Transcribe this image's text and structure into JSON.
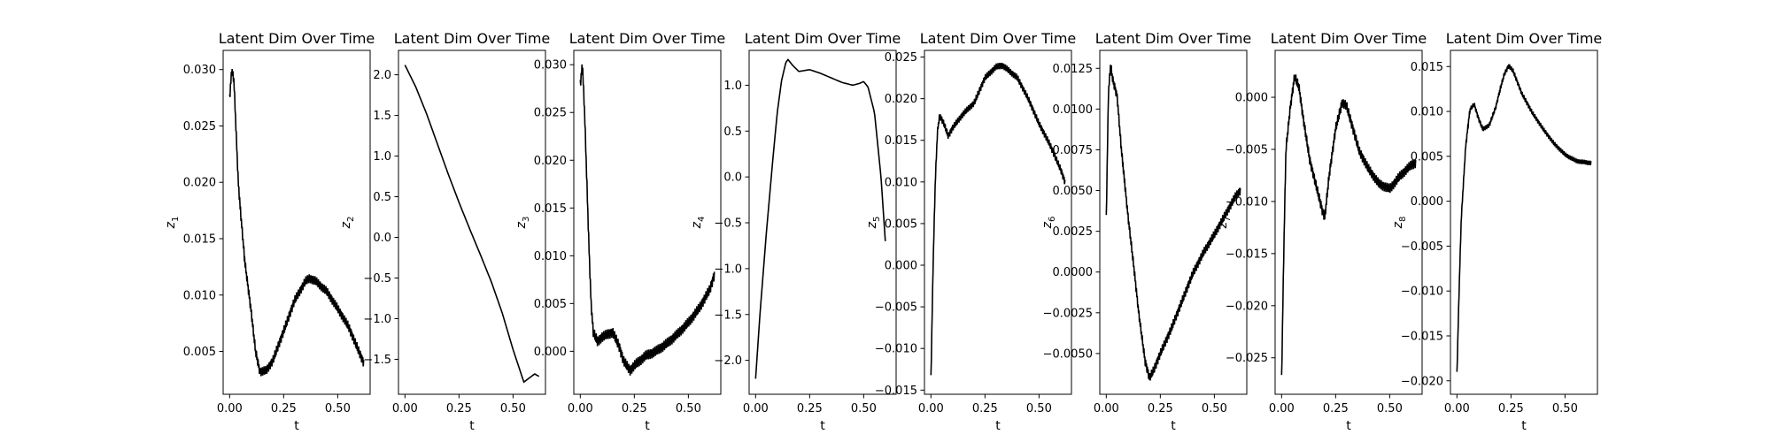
{
  "chart_data": [
    {
      "type": "line",
      "title": "Latent Dim Over Time",
      "xlabel": "t",
      "ylabel": "z",
      "ylabel_sub": "1",
      "xlim": [
        -0.03,
        0.65
      ],
      "ylim": [
        0.0012,
        0.0317
      ],
      "xticks": [
        0.0,
        0.25,
        0.5
      ],
      "xtick_labels": [
        "0.00",
        "0.25",
        "0.50"
      ],
      "yticks": [
        0.005,
        0.01,
        0.015,
        0.02,
        0.025,
        0.03
      ],
      "ytick_labels": [
        "0.005",
        "0.010",
        "0.015",
        "0.020",
        "0.025",
        "0.030"
      ],
      "noise": 0.0006,
      "series": [
        {
          "color": "#000000",
          "x": [
            0.0,
            0.01,
            0.02,
            0.03,
            0.04,
            0.05,
            0.07,
            0.1,
            0.12,
            0.14,
            0.17,
            0.2,
            0.25,
            0.3,
            0.35,
            0.37,
            0.4,
            0.45,
            0.5,
            0.55,
            0.6,
            0.62
          ],
          "y": [
            0.0275,
            0.03,
            0.029,
            0.0245,
            0.02,
            0.0175,
            0.013,
            0.0085,
            0.005,
            0.0032,
            0.0033,
            0.0042,
            0.0068,
            0.0095,
            0.0112,
            0.0115,
            0.0112,
            0.0103,
            0.0088,
            0.0072,
            0.0049,
            0.004
          ]
        }
      ]
    },
    {
      "type": "line",
      "title": "Latent Dim Over Time",
      "xlabel": "t",
      "ylabel": "z",
      "ylabel_sub": "2",
      "xlim": [
        -0.03,
        0.65
      ],
      "ylim": [
        -1.93,
        2.3
      ],
      "xticks": [
        0.0,
        0.25,
        0.5
      ],
      "xtick_labels": [
        "0.00",
        "0.25",
        "0.50"
      ],
      "yticks": [
        -1.5,
        -1.0,
        -0.5,
        0.0,
        0.5,
        1.0,
        1.5,
        2.0
      ],
      "ytick_labels": [
        "−1.5",
        "−1.0",
        "−0.5",
        "0.0",
        "0.5",
        "1.0",
        "1.5",
        "2.0"
      ],
      "noise": 0,
      "series": [
        {
          "color": "#000000",
          "x": [
            0.0,
            0.05,
            0.1,
            0.15,
            0.2,
            0.25,
            0.3,
            0.35,
            0.4,
            0.45,
            0.5,
            0.55,
            0.6,
            0.62
          ],
          "y": [
            2.12,
            1.85,
            1.52,
            1.15,
            0.78,
            0.43,
            0.1,
            -0.22,
            -0.55,
            -0.93,
            -1.38,
            -1.78,
            -1.68,
            -1.71
          ]
        }
      ]
    },
    {
      "type": "line",
      "title": "Latent Dim Over Time",
      "xlabel": "t",
      "ylabel": "z",
      "ylabel_sub": "3",
      "xlim": [
        -0.03,
        0.65
      ],
      "ylim": [
        -0.0045,
        0.0315
      ],
      "xticks": [
        0.0,
        0.25,
        0.5
      ],
      "xtick_labels": [
        "0.00",
        "0.25",
        "0.50"
      ],
      "yticks": [
        0.0,
        0.005,
        0.01,
        0.015,
        0.02,
        0.025,
        0.03
      ],
      "ytick_labels": [
        "0.000",
        "0.005",
        "0.010",
        "0.015",
        "0.020",
        "0.025",
        "0.030"
      ],
      "noise": 0.0008,
      "series": [
        {
          "color": "#000000",
          "x": [
            0.0,
            0.01,
            0.02,
            0.03,
            0.04,
            0.05,
            0.06,
            0.08,
            0.1,
            0.15,
            0.18,
            0.2,
            0.23,
            0.25,
            0.3,
            0.35,
            0.4,
            0.45,
            0.5,
            0.55,
            0.6,
            0.62
          ],
          "y": [
            0.028,
            0.03,
            0.025,
            0.018,
            0.011,
            0.005,
            0.002,
            0.001,
            0.0015,
            0.002,
            0.0005,
            -0.001,
            -0.002,
            -0.0015,
            -0.0005,
            0.0,
            0.0008,
            0.0018,
            0.003,
            0.0045,
            0.0065,
            0.008
          ]
        }
      ]
    },
    {
      "type": "line",
      "title": "Latent Dim Over Time",
      "xlabel": "t",
      "ylabel": "z",
      "ylabel_sub": "4",
      "xlim": [
        -0.03,
        0.65
      ],
      "ylim": [
        -2.37,
        1.38
      ],
      "xticks": [
        0.0,
        0.25,
        0.5
      ],
      "xtick_labels": [
        "0.00",
        "0.25",
        "0.50"
      ],
      "yticks": [
        -2.0,
        -1.5,
        -1.0,
        -0.5,
        0.0,
        0.5,
        1.0
      ],
      "ytick_labels": [
        "−2.0",
        "−1.5",
        "−1.0",
        "−0.5",
        "0.0",
        "0.5",
        "1.0"
      ],
      "noise": 0,
      "series": [
        {
          "color": "#000000",
          "x": [
            0.0,
            0.02,
            0.05,
            0.08,
            0.1,
            0.12,
            0.14,
            0.15,
            0.17,
            0.2,
            0.25,
            0.3,
            0.35,
            0.4,
            0.45,
            0.48,
            0.5,
            0.52,
            0.55,
            0.58,
            0.6
          ],
          "y": [
            -2.2,
            -1.5,
            -0.6,
            0.2,
            0.7,
            1.05,
            1.25,
            1.28,
            1.22,
            1.15,
            1.17,
            1.13,
            1.08,
            1.03,
            1.0,
            1.02,
            1.04,
            0.98,
            0.7,
            0.0,
            -0.7
          ]
        }
      ]
    },
    {
      "type": "line",
      "title": "Latent Dim Over Time",
      "xlabel": "t",
      "ylabel": "z",
      "ylabel_sub": "5",
      "xlim": [
        -0.03,
        0.65
      ],
      "ylim": [
        -0.0155,
        0.0258
      ],
      "xticks": [
        0.0,
        0.25,
        0.5
      ],
      "xtick_labels": [
        "0.00",
        "0.25",
        "0.50"
      ],
      "yticks": [
        -0.015,
        -0.01,
        -0.005,
        0.0,
        0.005,
        0.01,
        0.015,
        0.02,
        0.025
      ],
      "ytick_labels": [
        "−0.015",
        "−0.010",
        "−0.005",
        "0.000",
        "0.005",
        "0.010",
        "0.015",
        "0.020",
        "0.025"
      ],
      "noise": 0.0006,
      "series": [
        {
          "color": "#000000",
          "x": [
            0.0,
            0.01,
            0.02,
            0.03,
            0.04,
            0.06,
            0.08,
            0.1,
            0.15,
            0.2,
            0.25,
            0.3,
            0.33,
            0.35,
            0.4,
            0.45,
            0.5,
            0.55,
            0.6,
            0.62
          ],
          "y": [
            -0.0135,
            0.0,
            0.01,
            0.016,
            0.018,
            0.017,
            0.0155,
            0.0165,
            0.0182,
            0.0195,
            0.0225,
            0.0238,
            0.024,
            0.0236,
            0.0225,
            0.02,
            0.017,
            0.0145,
            0.0115,
            0.01
          ]
        }
      ]
    },
    {
      "type": "line",
      "title": "Latent Dim Over Time",
      "xlabel": "t",
      "ylabel": "z",
      "ylabel_sub": "6",
      "xlim": [
        -0.03,
        0.65
      ],
      "ylim": [
        -0.0075,
        0.0136
      ],
      "xticks": [
        0.0,
        0.25,
        0.5
      ],
      "xtick_labels": [
        "0.00",
        "0.25",
        "0.50"
      ],
      "yticks": [
        -0.005,
        -0.0025,
        0.0,
        0.0025,
        0.005,
        0.0075,
        0.01,
        0.0125
      ],
      "ytick_labels": [
        "−0.0050",
        "−0.0025",
        "0.0000",
        "0.0025",
        "0.0050",
        "0.0075",
        "0.0100",
        "0.0125"
      ],
      "noise": 0.0004,
      "series": [
        {
          "color": "#000000",
          "x": [
            0.0,
            0.01,
            0.02,
            0.03,
            0.05,
            0.07,
            0.1,
            0.13,
            0.15,
            0.18,
            0.2,
            0.22,
            0.25,
            0.3,
            0.35,
            0.4,
            0.45,
            0.5,
            0.55,
            0.6,
            0.62
          ],
          "y": [
            0.0033,
            0.011,
            0.0127,
            0.0118,
            0.0108,
            0.0075,
            0.0035,
            0.0,
            -0.0025,
            -0.0055,
            -0.0065,
            -0.006,
            -0.005,
            -0.0035,
            -0.0018,
            -0.0001,
            0.0012,
            0.0023,
            0.0035,
            0.0047,
            0.005
          ]
        }
      ]
    },
    {
      "type": "line",
      "title": "Latent Dim Over Time",
      "xlabel": "t",
      "ylabel": "z",
      "ylabel_sub": "7",
      "xlim": [
        -0.03,
        0.65
      ],
      "ylim": [
        -0.0285,
        0.0045
      ],
      "xticks": [
        0.0,
        0.25,
        0.5
      ],
      "xtick_labels": [
        "0.00",
        "0.25",
        "0.50"
      ],
      "yticks": [
        -0.025,
        -0.02,
        -0.015,
        -0.01,
        -0.005,
        0.0
      ],
      "ytick_labels": [
        "−0.025",
        "−0.020",
        "−0.015",
        "−0.010",
        "−0.005",
        "0.000"
      ],
      "noise": 0.0007,
      "series": [
        {
          "color": "#000000",
          "x": [
            0.0,
            0.01,
            0.02,
            0.04,
            0.06,
            0.08,
            0.1,
            0.13,
            0.16,
            0.19,
            0.2,
            0.22,
            0.25,
            0.28,
            0.3,
            0.33,
            0.36,
            0.4,
            0.45,
            0.5,
            0.55,
            0.6,
            0.62
          ],
          "y": [
            -0.027,
            -0.015,
            -0.005,
            -0.001,
            0.002,
            0.001,
            -0.002,
            -0.006,
            -0.0085,
            -0.011,
            -0.0115,
            -0.0075,
            -0.003,
            -0.0005,
            -0.0008,
            -0.003,
            -0.0052,
            -0.0068,
            -0.0083,
            -0.0088,
            -0.0075,
            -0.0065,
            -0.0063
          ]
        }
      ]
    },
    {
      "type": "line",
      "title": "Latent Dim Over Time",
      "xlabel": "t",
      "ylabel": "z",
      "ylabel_sub": "8",
      "xlim": [
        -0.03,
        0.65
      ],
      "ylim": [
        -0.0215,
        0.0168
      ],
      "xticks": [
        0.0,
        0.25,
        0.5
      ],
      "xtick_labels": [
        "0.00",
        "0.25",
        "0.50"
      ],
      "yticks": [
        -0.02,
        -0.015,
        -0.01,
        -0.005,
        0.0,
        0.005,
        0.01,
        0.015
      ],
      "ytick_labels": [
        "−0.020",
        "−0.015",
        "−0.010",
        "−0.005",
        "0.000",
        "0.005",
        "0.010",
        "0.015"
      ],
      "noise": 0.0004,
      "series": [
        {
          "color": "#000000",
          "x": [
            0.0,
            0.01,
            0.02,
            0.04,
            0.06,
            0.08,
            0.1,
            0.12,
            0.15,
            0.18,
            0.2,
            0.22,
            0.24,
            0.26,
            0.3,
            0.35,
            0.4,
            0.45,
            0.5,
            0.55,
            0.6,
            0.62
          ],
          "y": [
            -0.0192,
            -0.01,
            -0.002,
            0.006,
            0.0102,
            0.0108,
            0.0092,
            0.008,
            0.0085,
            0.0105,
            0.0125,
            0.0142,
            0.0151,
            0.0145,
            0.012,
            0.0098,
            0.008,
            0.0064,
            0.0052,
            0.0045,
            0.0043,
            0.0043
          ]
        }
      ]
    }
  ]
}
